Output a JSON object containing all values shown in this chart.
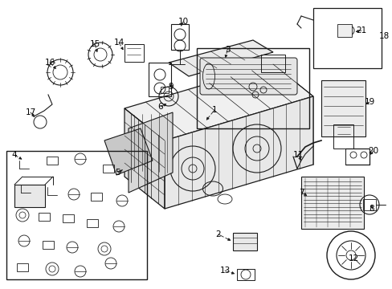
{
  "bg_color": "#ffffff",
  "fig_width": 4.89,
  "fig_height": 3.6,
  "dpi": 100,
  "line_color": "#1a1a1a",
  "label_fontsize": 7.0,
  "label_color": "#000000"
}
